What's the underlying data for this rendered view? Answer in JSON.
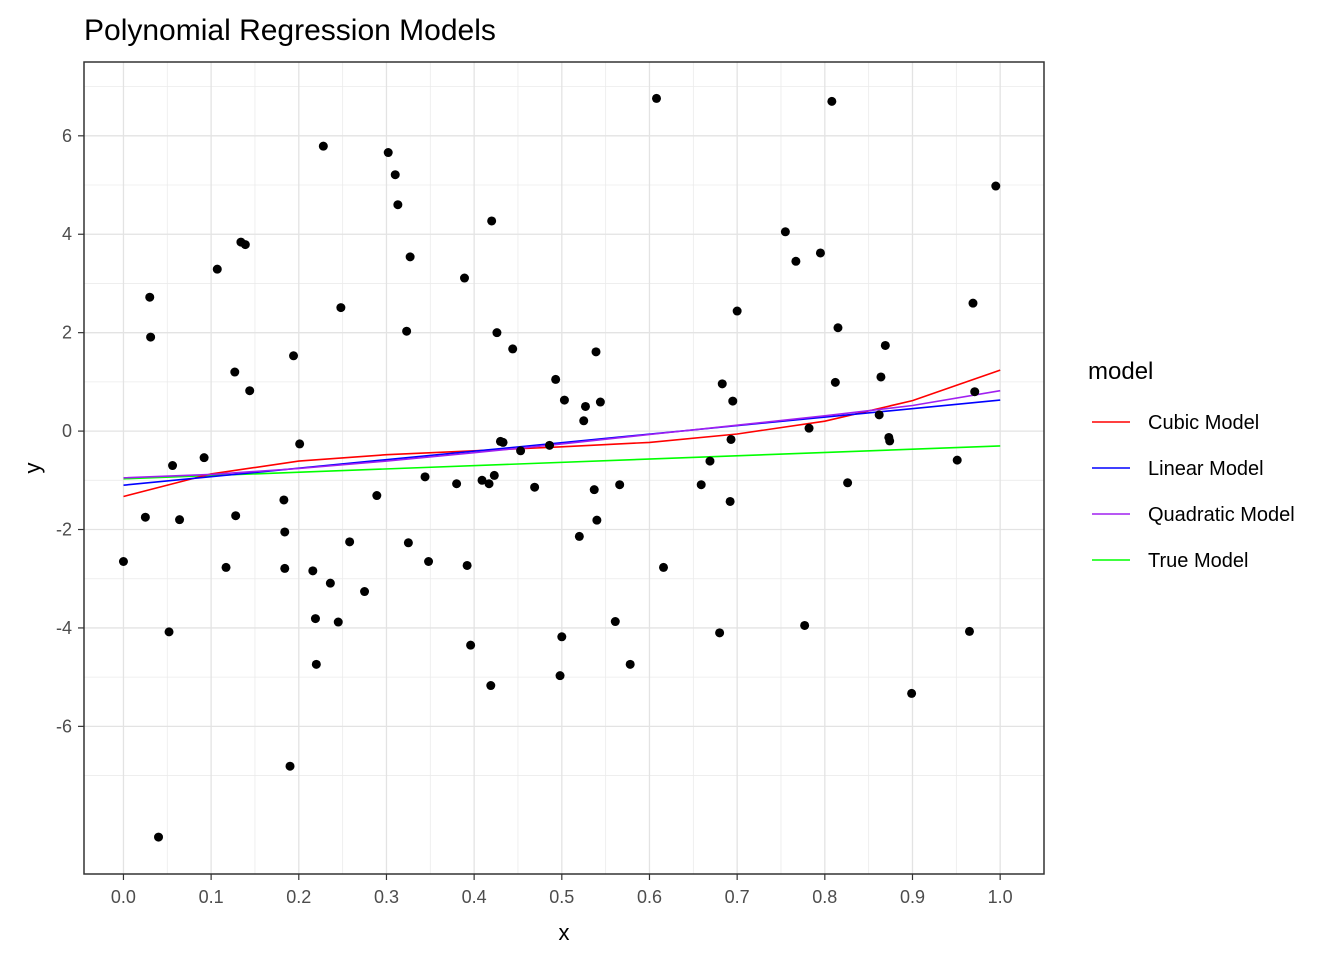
{
  "chart_data": {
    "type": "scatter",
    "title": "Polynomial Regression Models",
    "xlabel": "x",
    "ylabel": "y",
    "xlim": [
      -0.045,
      1.05
    ],
    "ylim": [
      -9.0,
      7.5
    ],
    "x_ticks": [
      0.0,
      0.1,
      0.2,
      0.3,
      0.4,
      0.5,
      0.6,
      0.7,
      0.8,
      0.9,
      1.0
    ],
    "x_tick_labels": [
      "0.0",
      "0.1",
      "0.2",
      "0.3",
      "0.4",
      "0.5",
      "0.6",
      "0.7",
      "0.8",
      "0.9",
      "1.0"
    ],
    "y_ticks": [
      -6,
      -4,
      -2,
      0,
      2,
      4,
      6
    ],
    "y_tick_labels": [
      "-6",
      "-4",
      "-2",
      "0",
      "2",
      "4",
      "6"
    ],
    "grid": true,
    "legend": {
      "title": "model",
      "position": "right",
      "items": [
        {
          "label": "Cubic Model",
          "color": "#ff0000"
        },
        {
          "label": "Linear Model",
          "color": "#0000ff"
        },
        {
          "label": "Quadratic Model",
          "color": "#a020f0"
        },
        {
          "label": "True Model",
          "color": "#00ff00"
        }
      ]
    },
    "points": [
      [
        0.0,
        -2.65
      ],
      [
        0.025,
        -1.75
      ],
      [
        0.03,
        2.72
      ],
      [
        0.031,
        1.91
      ],
      [
        0.04,
        -8.25
      ],
      [
        0.052,
        -4.08
      ],
      [
        0.056,
        -0.7
      ],
      [
        0.064,
        -1.8
      ],
      [
        0.092,
        -0.54
      ],
      [
        0.107,
        3.29
      ],
      [
        0.117,
        -2.77
      ],
      [
        0.127,
        1.2
      ],
      [
        0.128,
        -1.72
      ],
      [
        0.134,
        3.84
      ],
      [
        0.139,
        3.79
      ],
      [
        0.144,
        0.82
      ],
      [
        0.183,
        -1.4
      ],
      [
        0.184,
        -2.05
      ],
      [
        0.184,
        -2.79
      ],
      [
        0.19,
        -6.81
      ],
      [
        0.194,
        1.53
      ],
      [
        0.201,
        -0.26
      ],
      [
        0.216,
        -2.84
      ],
      [
        0.219,
        -3.81
      ],
      [
        0.22,
        -4.74
      ],
      [
        0.228,
        5.79
      ],
      [
        0.236,
        -3.09
      ],
      [
        0.245,
        -3.88
      ],
      [
        0.248,
        2.51
      ],
      [
        0.258,
        -2.25
      ],
      [
        0.275,
        -3.26
      ],
      [
        0.289,
        -1.31
      ],
      [
        0.302,
        5.66
      ],
      [
        0.31,
        5.21
      ],
      [
        0.313,
        4.6
      ],
      [
        0.323,
        2.03
      ],
      [
        0.325,
        -2.27
      ],
      [
        0.327,
        3.54
      ],
      [
        0.344,
        -0.93
      ],
      [
        0.348,
        -2.65
      ],
      [
        0.38,
        -1.07
      ],
      [
        0.389,
        3.11
      ],
      [
        0.392,
        -2.73
      ],
      [
        0.396,
        -4.35
      ],
      [
        0.409,
        -1.0
      ],
      [
        0.417,
        -1.07
      ],
      [
        0.419,
        -5.17
      ],
      [
        0.42,
        4.27
      ],
      [
        0.423,
        -0.9
      ],
      [
        0.426,
        2.0
      ],
      [
        0.43,
        -0.21
      ],
      [
        0.433,
        -0.23
      ],
      [
        0.444,
        1.67
      ],
      [
        0.453,
        -0.4
      ],
      [
        0.469,
        -1.14
      ],
      [
        0.486,
        -0.29
      ],
      [
        0.493,
        1.05
      ],
      [
        0.498,
        -4.97
      ],
      [
        0.5,
        -4.18
      ],
      [
        0.503,
        0.63
      ],
      [
        0.52,
        -2.14
      ],
      [
        0.525,
        0.21
      ],
      [
        0.527,
        0.5
      ],
      [
        0.537,
        -1.19
      ],
      [
        0.539,
        1.61
      ],
      [
        0.54,
        -1.81
      ],
      [
        0.544,
        0.59
      ],
      [
        0.561,
        -3.87
      ],
      [
        0.566,
        -1.09
      ],
      [
        0.578,
        -4.74
      ],
      [
        0.608,
        6.76
      ],
      [
        0.616,
        -2.77
      ],
      [
        0.659,
        -1.09
      ],
      [
        0.669,
        -0.61
      ],
      [
        0.68,
        -4.1
      ],
      [
        0.683,
        0.96
      ],
      [
        0.692,
        -1.43
      ],
      [
        0.693,
        -0.17
      ],
      [
        0.695,
        0.61
      ],
      [
        0.7,
        2.44
      ],
      [
        0.755,
        4.05
      ],
      [
        0.767,
        3.45
      ],
      [
        0.777,
        -3.95
      ],
      [
        0.782,
        0.06
      ],
      [
        0.795,
        3.62
      ],
      [
        0.808,
        6.7
      ],
      [
        0.812,
        0.99
      ],
      [
        0.815,
        2.1
      ],
      [
        0.826,
        -1.05
      ],
      [
        0.862,
        0.33
      ],
      [
        0.864,
        1.1
      ],
      [
        0.869,
        1.74
      ],
      [
        0.873,
        -0.13
      ],
      [
        0.874,
        -0.2
      ],
      [
        0.899,
        -5.33
      ],
      [
        0.951,
        -0.59
      ],
      [
        0.965,
        -4.07
      ],
      [
        0.969,
        2.6
      ],
      [
        0.971,
        0.8
      ],
      [
        0.995,
        4.98
      ]
    ],
    "series": [
      {
        "name": "Cubic Model",
        "color": "#ff0000",
        "x": [
          0.0,
          0.1,
          0.2,
          0.3,
          0.4,
          0.5,
          0.6,
          0.7,
          0.8,
          0.9,
          1.0
        ],
        "y": [
          -1.33,
          -0.87,
          -0.61,
          -0.48,
          -0.4,
          -0.32,
          -0.23,
          -0.06,
          0.2,
          0.62,
          1.24
        ]
      },
      {
        "name": "Linear Model",
        "color": "#0000ff",
        "x": [
          0.0,
          1.0
        ],
        "y": [
          -1.1,
          0.63
        ]
      },
      {
        "name": "Quadratic Model",
        "color": "#a020f0",
        "x": [
          0.0,
          0.1,
          0.2,
          0.3,
          0.4,
          0.5,
          0.6,
          0.7,
          0.8,
          0.9,
          1.0
        ],
        "y": [
          -0.95,
          -0.88,
          -0.76,
          -0.61,
          -0.44,
          -0.26,
          -0.07,
          0.12,
          0.31,
          0.52,
          0.82
        ]
      },
      {
        "name": "True Model",
        "color": "#00ff00",
        "x": [
          0.0,
          1.0
        ],
        "y": [
          -0.97,
          -0.3
        ]
      }
    ]
  }
}
